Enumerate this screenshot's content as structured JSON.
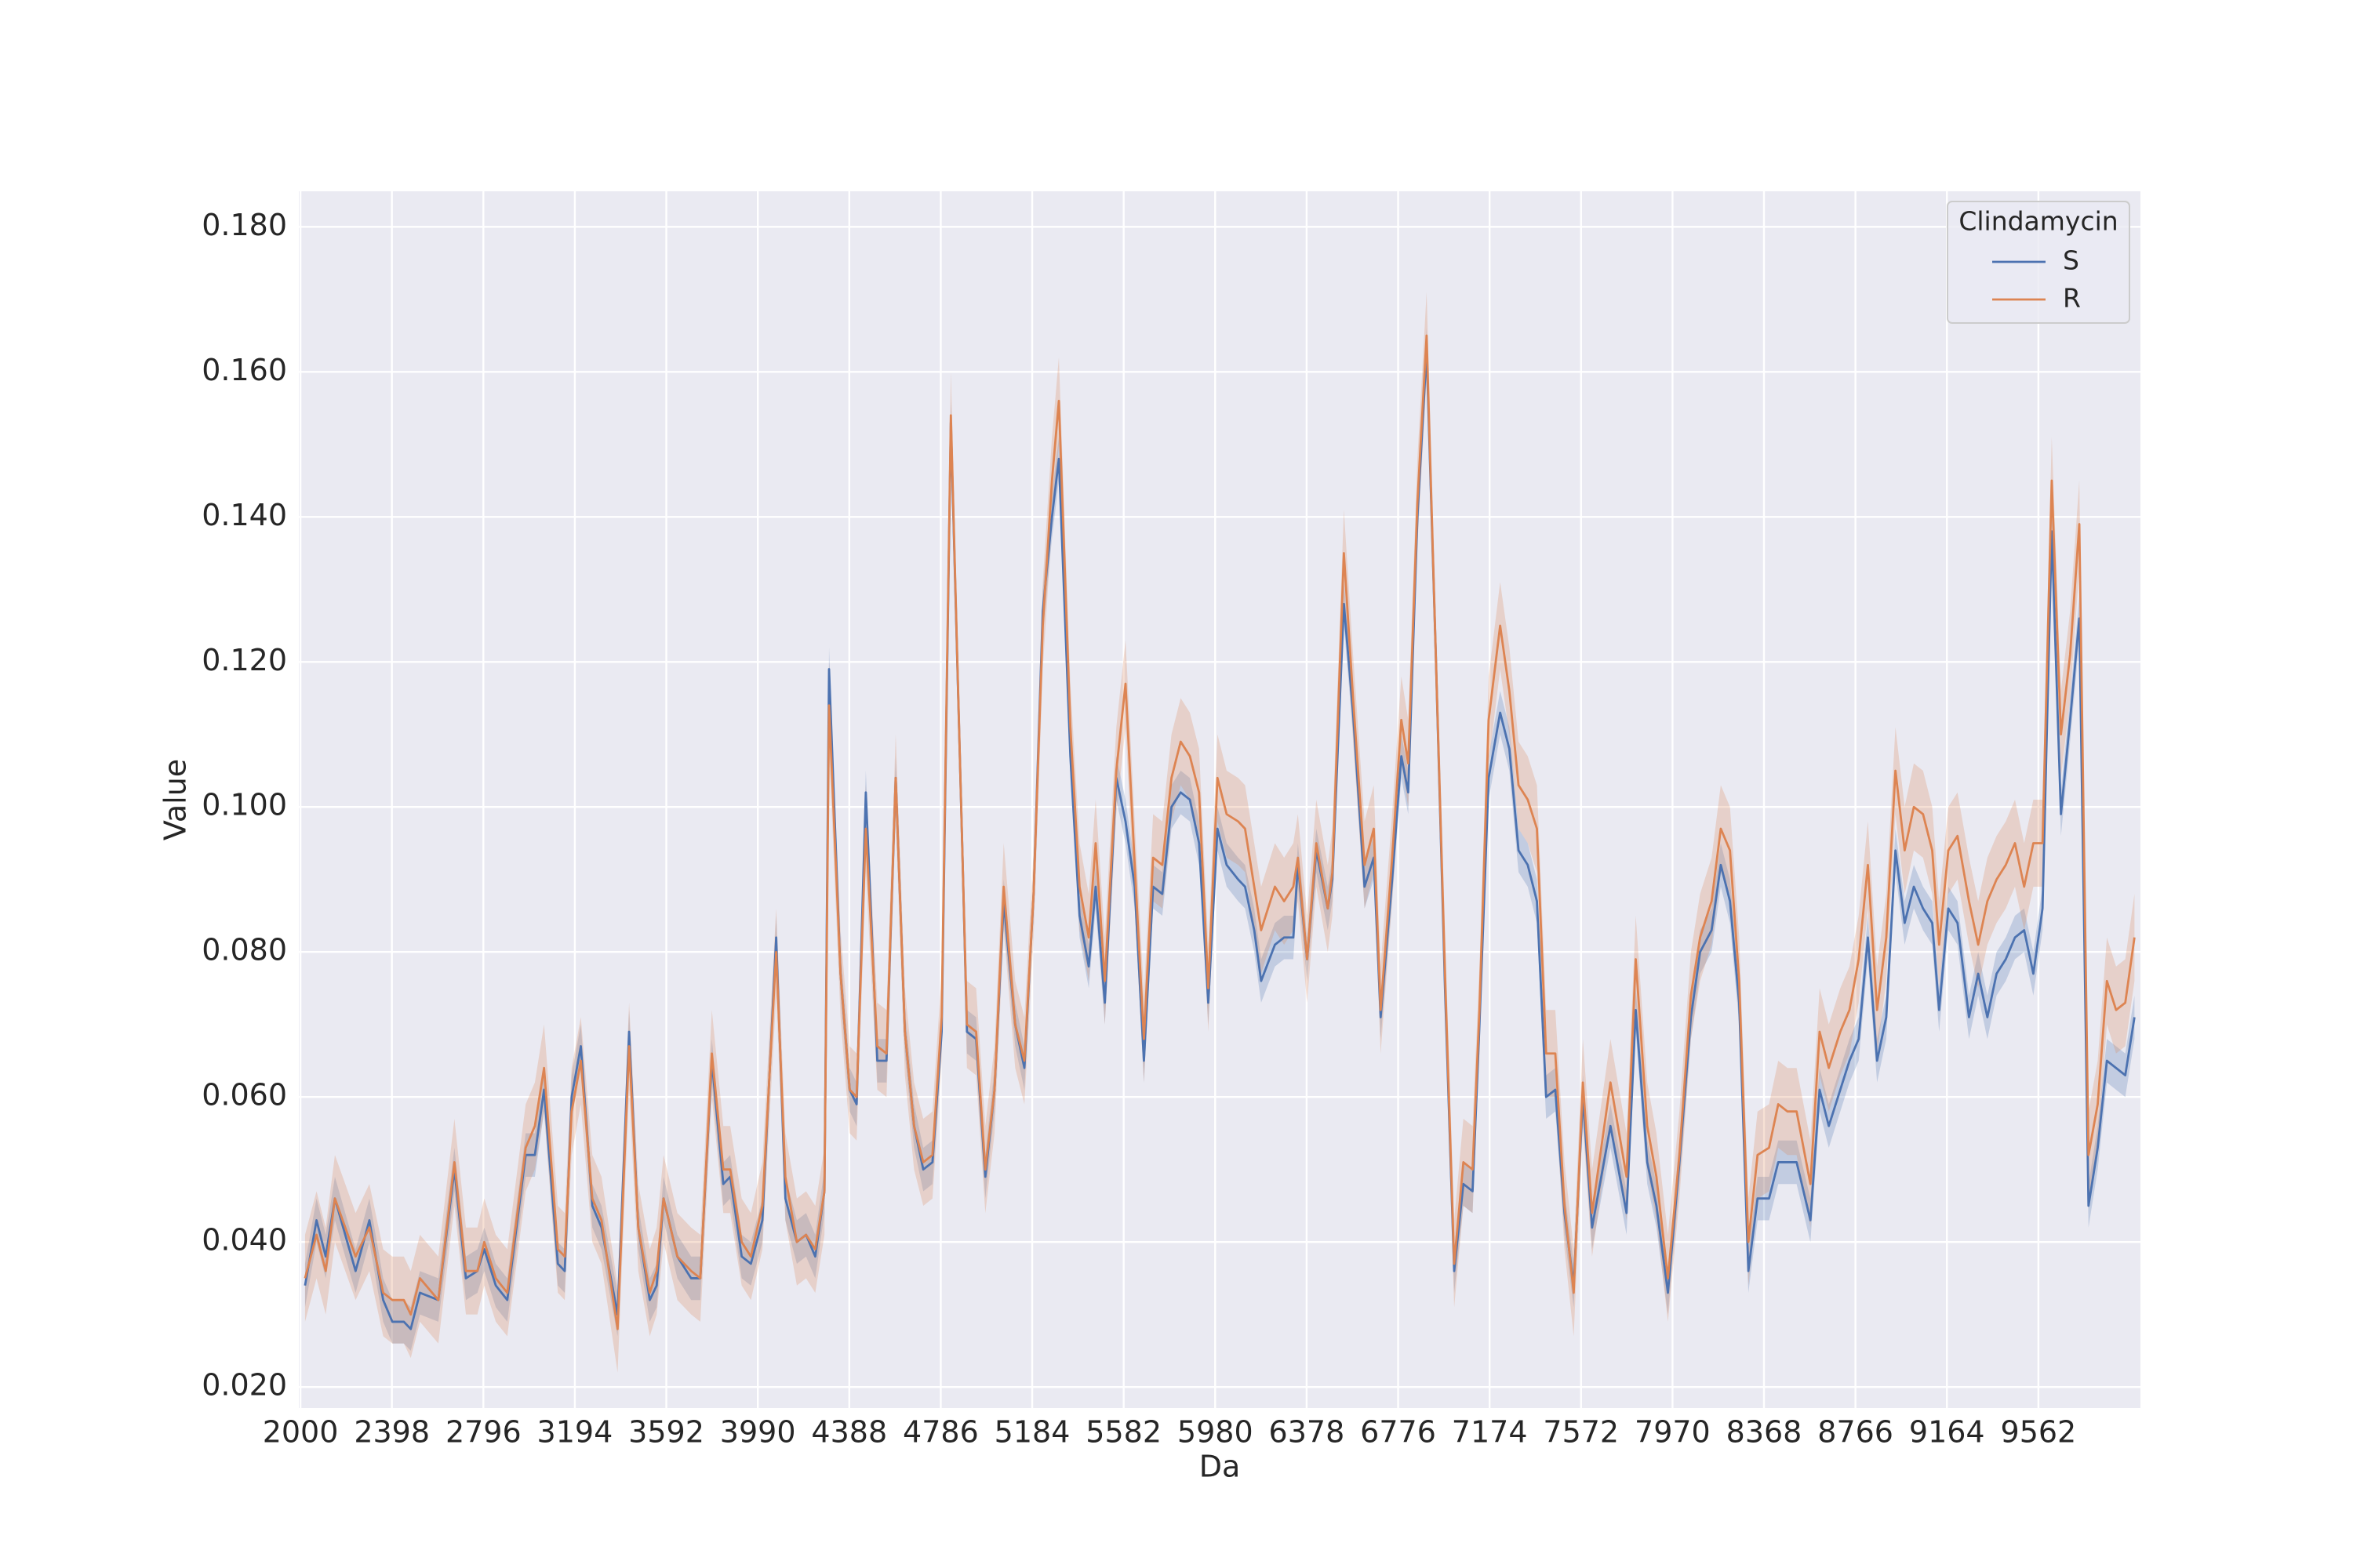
{
  "chart_data": {
    "type": "line",
    "x_label": "Da",
    "y_label": "Value",
    "legend_title": "Clindamycin",
    "legend": "upper right",
    "grid": true,
    "xlim": [
      1993,
      10006
    ],
    "xticks": [
      2000,
      2398,
      2796,
      3194,
      3592,
      3990,
      4388,
      4786,
      5184,
      5582,
      5980,
      6378,
      6776,
      7174,
      7572,
      7970,
      8368,
      8766,
      9164,
      9562
    ],
    "ylim": [
      0.0171,
      0.1849
    ],
    "yticks": [
      {
        "value": 0.02,
        "label": "0.020"
      },
      {
        "value": 0.04,
        "label": "0.040"
      },
      {
        "value": 0.06,
        "label": "0.060"
      },
      {
        "value": 0.08,
        "label": "0.080"
      },
      {
        "value": 0.1,
        "label": "0.100"
      },
      {
        "value": 0.12,
        "label": "0.120"
      },
      {
        "value": 0.14,
        "label": "0.140"
      },
      {
        "value": 0.16,
        "label": "0.160"
      },
      {
        "value": 0.18,
        "label": "0.180"
      }
    ],
    "x": [
      2020,
      2070,
      2110,
      2150,
      2240,
      2300,
      2360,
      2400,
      2450,
      2480,
      2520,
      2600,
      2670,
      2720,
      2770,
      2800,
      2850,
      2900,
      2980,
      3020,
      3060,
      3120,
      3150,
      3180,
      3220,
      3270,
      3310,
      3380,
      3430,
      3470,
      3520,
      3550,
      3580,
      3640,
      3700,
      3740,
      3790,
      3840,
      3870,
      3920,
      3960,
      4010,
      4070,
      4110,
      4160,
      4200,
      4240,
      4280,
      4300,
      4350,
      4390,
      4420,
      4460,
      4510,
      4550,
      4590,
      4630,
      4670,
      4710,
      4750,
      4790,
      4830,
      4880,
      4900,
      4940,
      4980,
      5020,
      5060,
      5110,
      5150,
      5190,
      5230,
      5270,
      5300,
      5350,
      5390,
      5430,
      5460,
      5500,
      5550,
      5590,
      5630,
      5670,
      5710,
      5750,
      5790,
      5830,
      5870,
      5910,
      5950,
      5990,
      6030,
      6080,
      6110,
      6150,
      6180,
      6240,
      6280,
      6320,
      6340,
      6380,
      6420,
      6470,
      6490,
      6540,
      6580,
      6630,
      6670,
      6700,
      6750,
      6790,
      6820,
      6860,
      6900,
      6940,
      6980,
      7020,
      7060,
      7100,
      7130,
      7170,
      7220,
      7260,
      7300,
      7340,
      7380,
      7420,
      7460,
      7500,
      7540,
      7580,
      7620,
      7700,
      7770,
      7810,
      7860,
      7900,
      7950,
      8000,
      8050,
      8090,
      8140,
      8180,
      8220,
      8260,
      8300,
      8340,
      8390,
      8430,
      8470,
      8510,
      8570,
      8610,
      8650,
      8700,
      8740,
      8780,
      8820,
      8860,
      8900,
      8940,
      8980,
      9020,
      9060,
      9100,
      9130,
      9170,
      9210,
      9260,
      9300,
      9340,
      9380,
      9420,
      9460,
      9500,
      9540,
      9580,
      9620,
      9660,
      9700,
      9740,
      9780,
      9820,
      9860,
      9900,
      9940,
      9980
    ],
    "series": [
      {
        "name": "S",
        "color": "#4c72b0",
        "ci": 0.003,
        "values": [
          0.034,
          0.043,
          0.038,
          0.046,
          0.036,
          0.043,
          0.032,
          0.029,
          0.029,
          0.028,
          0.033,
          0.032,
          0.05,
          0.035,
          0.036,
          0.039,
          0.034,
          0.032,
          0.052,
          0.052,
          0.061,
          0.037,
          0.036,
          0.06,
          0.067,
          0.045,
          0.042,
          0.03,
          0.069,
          0.042,
          0.032,
          0.034,
          0.046,
          0.038,
          0.035,
          0.035,
          0.065,
          0.048,
          0.049,
          0.038,
          0.037,
          0.043,
          0.082,
          0.046,
          0.04,
          0.041,
          0.038,
          0.047,
          0.119,
          0.077,
          0.061,
          0.059,
          0.102,
          0.065,
          0.065,
          0.104,
          0.069,
          0.056,
          0.05,
          0.051,
          0.069,
          0.153,
          0.094,
          0.069,
          0.068,
          0.049,
          0.061,
          0.087,
          0.07,
          0.064,
          0.088,
          0.127,
          0.14,
          0.148,
          0.107,
          0.085,
          0.078,
          0.089,
          0.073,
          0.104,
          0.098,
          0.089,
          0.065,
          0.089,
          0.088,
          0.1,
          0.102,
          0.101,
          0.095,
          0.073,
          0.097,
          0.092,
          0.09,
          0.089,
          0.083,
          0.076,
          0.081,
          0.082,
          0.082,
          0.092,
          0.079,
          0.094,
          0.086,
          0.09,
          0.128,
          0.113,
          0.089,
          0.093,
          0.071,
          0.09,
          0.107,
          0.102,
          0.14,
          0.163,
          0.121,
          0.075,
          0.036,
          0.048,
          0.047,
          0.07,
          0.104,
          0.113,
          0.108,
          0.094,
          0.092,
          0.087,
          0.06,
          0.061,
          0.044,
          0.034,
          0.06,
          0.042,
          0.056,
          0.044,
          0.072,
          0.051,
          0.045,
          0.033,
          0.051,
          0.071,
          0.08,
          0.083,
          0.092,
          0.087,
          0.073,
          0.036,
          0.046,
          0.046,
          0.051,
          0.051,
          0.051,
          0.043,
          0.061,
          0.056,
          0.061,
          0.065,
          0.068,
          0.082,
          0.065,
          0.071,
          0.094,
          0.084,
          0.089,
          0.086,
          0.084,
          0.072,
          0.086,
          0.084,
          0.071,
          0.077,
          0.071,
          0.077,
          0.079,
          0.082,
          0.083,
          0.077,
          0.086,
          0.138,
          0.099,
          0.112,
          0.126,
          0.045,
          0.053,
          0.065,
          0.064,
          0.063,
          0.071
        ]
      },
      {
        "name": "R",
        "color": "#dd8452",
        "ci": 0.006,
        "values": [
          0.035,
          0.041,
          0.036,
          0.046,
          0.038,
          0.042,
          0.033,
          0.032,
          0.032,
          0.03,
          0.035,
          0.032,
          0.051,
          0.036,
          0.036,
          0.04,
          0.035,
          0.033,
          0.053,
          0.056,
          0.064,
          0.039,
          0.038,
          0.058,
          0.065,
          0.046,
          0.043,
          0.028,
          0.067,
          0.042,
          0.033,
          0.036,
          0.046,
          0.038,
          0.036,
          0.035,
          0.066,
          0.05,
          0.05,
          0.04,
          0.038,
          0.045,
          0.08,
          0.049,
          0.04,
          0.041,
          0.039,
          0.047,
          0.114,
          0.077,
          0.061,
          0.06,
          0.097,
          0.067,
          0.066,
          0.104,
          0.069,
          0.056,
          0.051,
          0.052,
          0.071,
          0.154,
          0.094,
          0.07,
          0.069,
          0.05,
          0.061,
          0.089,
          0.07,
          0.065,
          0.088,
          0.125,
          0.145,
          0.156,
          0.111,
          0.089,
          0.082,
          0.095,
          0.076,
          0.105,
          0.117,
          0.092,
          0.068,
          0.093,
          0.092,
          0.104,
          0.109,
          0.107,
          0.102,
          0.075,
          0.104,
          0.099,
          0.098,
          0.097,
          0.089,
          0.083,
          0.089,
          0.087,
          0.089,
          0.093,
          0.079,
          0.095,
          0.086,
          0.091,
          0.135,
          0.115,
          0.092,
          0.097,
          0.072,
          0.093,
          0.112,
          0.106,
          0.142,
          0.165,
          0.121,
          0.077,
          0.037,
          0.051,
          0.05,
          0.072,
          0.112,
          0.125,
          0.116,
          0.103,
          0.101,
          0.097,
          0.066,
          0.066,
          0.045,
          0.033,
          0.062,
          0.044,
          0.062,
          0.049,
          0.079,
          0.056,
          0.049,
          0.035,
          0.052,
          0.074,
          0.082,
          0.087,
          0.097,
          0.094,
          0.076,
          0.04,
          0.052,
          0.053,
          0.059,
          0.058,
          0.058,
          0.048,
          0.069,
          0.064,
          0.069,
          0.072,
          0.079,
          0.092,
          0.072,
          0.082,
          0.105,
          0.094,
          0.1,
          0.099,
          0.094,
          0.081,
          0.094,
          0.096,
          0.087,
          0.081,
          0.087,
          0.09,
          0.092,
          0.095,
          0.089,
          0.095,
          0.095,
          0.145,
          0.11,
          0.121,
          0.139,
          0.052,
          0.059,
          0.076,
          0.072,
          0.073,
          0.082
        ]
      }
    ]
  }
}
